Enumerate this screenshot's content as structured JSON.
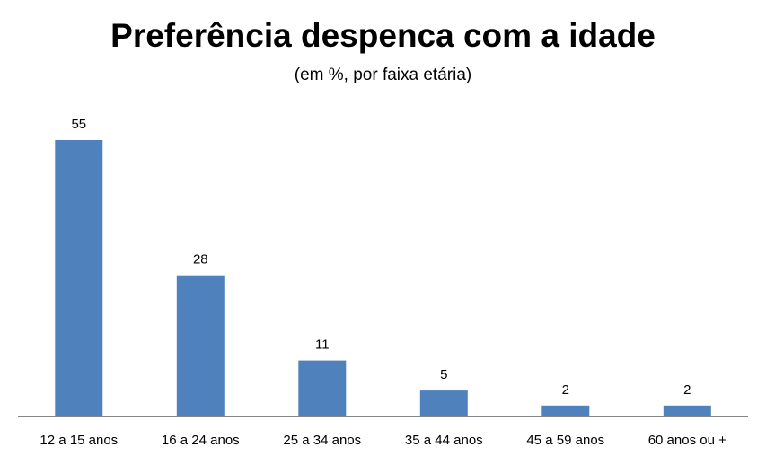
{
  "chart_data": {
    "type": "bar",
    "title": "Preferência despenca com a idade",
    "subtitle": "(em %, por faixa etária)",
    "categories": [
      "12 a 15 anos",
      "16 a 24 anos",
      "25 a 34 anos",
      "35 a 44 anos",
      "45 a 59 anos",
      "60 anos ou +"
    ],
    "values": [
      55,
      28,
      11,
      5,
      2,
      2
    ],
    "xlabel": "",
    "ylabel": "",
    "ylim": [
      0,
      55
    ],
    "grid": false,
    "legend": "none",
    "bar_color": "#4F81BD",
    "axis_color": "#868686"
  }
}
